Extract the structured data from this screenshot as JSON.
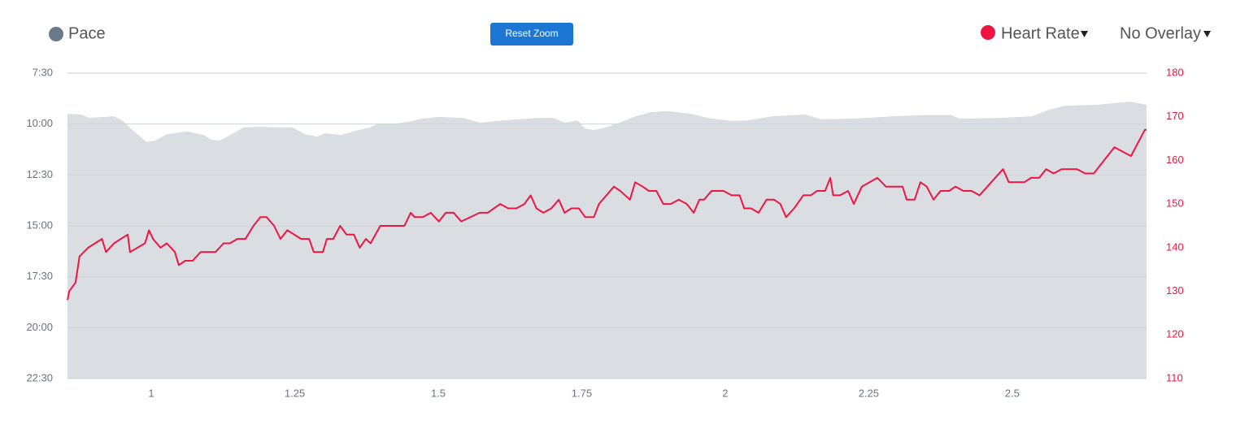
{
  "chart_data": {
    "type": "area-line",
    "legend": {
      "items": [
        "Pace",
        "Heart Rate",
        "No Overlay"
      ]
    },
    "button": "Reset Zoom",
    "xlim": [
      0.854,
      2.734
    ],
    "xticks": [
      1,
      1.25,
      1.5,
      1.75,
      2,
      2.25,
      2.5
    ],
    "ylim": [
      1350,
      450
    ],
    "yticks": [
      {
        "value": 450,
        "label": "7:30"
      },
      {
        "value": 600,
        "label": "10:00"
      },
      {
        "value": 750,
        "label": "12:30"
      },
      {
        "value": 900,
        "label": "15:00"
      },
      {
        "value": 1050,
        "label": "17:30"
      },
      {
        "value": 1200,
        "label": "20:00"
      },
      {
        "value": 1350,
        "label": "22:30"
      }
    ],
    "y2lim": [
      110,
      180
    ],
    "y2ticks": [
      110,
      120,
      130,
      140,
      150,
      160,
      170,
      180
    ],
    "grid": true,
    "series": [
      {
        "name": "Pace",
        "type": "area",
        "color": "#dadee2",
        "marker_color": "#6b7a89",
        "x": [
          0.854,
          0.878,
          0.892,
          0.935,
          0.949,
          0.97,
          0.992,
          1.006,
          1.027,
          1.062,
          1.091,
          1.105,
          1.119,
          1.14,
          1.161,
          1.19,
          1.218,
          1.246,
          1.268,
          1.289,
          1.303,
          1.331,
          1.36,
          1.381,
          1.395,
          1.416,
          1.445,
          1.473,
          1.501,
          1.544,
          1.572,
          1.615,
          1.671,
          1.7,
          1.721,
          1.742,
          1.756,
          1.771,
          1.792,
          1.813,
          1.841,
          1.87,
          1.898,
          1.941,
          1.969,
          2.011,
          2.04,
          2.082,
          2.139,
          2.167,
          2.224,
          2.295,
          2.337,
          2.394,
          2.408,
          2.479,
          2.535,
          2.564,
          2.592,
          2.649,
          2.705,
          2.734
        ],
        "values": [
          570,
          572,
          582,
          577,
          589,
          622,
          653,
          649,
          630,
          622,
          632,
          646,
          649,
          630,
          610,
          608,
          610,
          610,
          630,
          637,
          627,
          632,
          618,
          610,
          598,
          601,
          594,
          584,
          579,
          582,
          596,
          589,
          582,
          582,
          596,
          589,
          613,
          618,
          610,
          598,
          579,
          565,
          562,
          570,
          582,
          591,
          589,
          577,
          572,
          586,
          584,
          577,
          574,
          574,
          584,
          582,
          577,
          558,
          546,
          543,
          534,
          543
        ]
      },
      {
        "name": "Heart Rate",
        "type": "line",
        "axis": "y2",
        "color": "#ef1542",
        "x": [
          0.854,
          0.857,
          0.868,
          0.875,
          0.89,
          0.914,
          0.921,
          0.935,
          0.959,
          0.963,
          0.989,
          0.996,
          1.003,
          1.016,
          1.027,
          1.041,
          1.048,
          1.059,
          1.072,
          1.086,
          1.112,
          1.126,
          1.137,
          1.15,
          1.164,
          1.178,
          1.19,
          1.201,
          1.214,
          1.225,
          1.237,
          1.261,
          1.275,
          1.283,
          1.299,
          1.306,
          1.317,
          1.329,
          1.34,
          1.353,
          1.363,
          1.374,
          1.382,
          1.399,
          1.441,
          1.452,
          1.459,
          1.473,
          1.487,
          1.501,
          1.513,
          1.527,
          1.54,
          1.572,
          1.586,
          1.608,
          1.622,
          1.636,
          1.65,
          1.661,
          1.671,
          1.683,
          1.697,
          1.71,
          1.72,
          1.732,
          1.745,
          1.756,
          1.771,
          1.78,
          1.806,
          1.817,
          1.834,
          1.843,
          1.856,
          1.867,
          1.88,
          1.892,
          1.905,
          1.919,
          1.933,
          1.945,
          1.955,
          1.963,
          1.976,
          1.997,
          2.011,
          2.025,
          2.033,
          2.045,
          2.058,
          2.072,
          2.085,
          2.096,
          2.106,
          2.12,
          2.136,
          2.149,
          2.16,
          2.174,
          2.183,
          2.188,
          2.2,
          2.214,
          2.224,
          2.238,
          2.265,
          2.28,
          2.309,
          2.316,
          2.33,
          2.34,
          2.351,
          2.363,
          2.375,
          2.39,
          2.401,
          2.415,
          2.429,
          2.443,
          2.484,
          2.494,
          2.521,
          2.533,
          2.547,
          2.559,
          2.572,
          2.586,
          2.613,
          2.627,
          2.642,
          2.678,
          2.707,
          2.731,
          2.734
        ],
        "values": [
          128,
          130,
          132,
          138,
          140,
          142,
          139,
          141,
          143,
          139,
          141,
          144,
          142,
          140,
          141,
          139,
          136,
          137,
          137,
          139,
          139,
          141,
          141,
          142,
          142,
          145,
          147,
          147,
          145,
          142,
          144,
          142,
          142,
          139,
          139,
          142,
          142,
          145,
          143,
          143,
          140,
          142,
          141,
          145,
          145,
          148,
          147,
          147,
          148,
          146,
          148,
          148,
          146,
          148,
          148,
          150,
          149,
          149,
          150,
          152,
          149,
          148,
          149,
          151,
          148,
          149,
          149,
          147,
          147,
          150,
          154,
          153,
          151,
          155,
          154,
          153,
          153,
          150,
          150,
          151,
          150,
          148,
          151,
          151,
          153,
          153,
          152,
          152,
          149,
          149,
          148,
          151,
          151,
          150,
          147,
          149,
          152,
          152,
          153,
          153,
          156,
          152,
          152,
          153,
          150,
          154,
          156,
          154,
          154,
          151,
          151,
          155,
          154,
          151,
          153,
          153,
          154,
          153,
          153,
          152,
          158,
          155,
          155,
          156,
          156,
          158,
          157,
          158,
          158,
          157,
          157,
          163,
          161,
          167,
          167
        ]
      }
    ]
  }
}
